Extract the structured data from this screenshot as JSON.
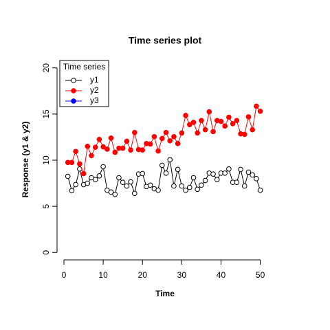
{
  "chart_data": {
    "type": "line",
    "title": "Time series plot",
    "x_label": "Time",
    "y_label": "Response (y1 & y2)",
    "x": [
      1,
      2,
      3,
      4,
      5,
      6,
      7,
      8,
      9,
      10,
      11,
      12,
      13,
      14,
      15,
      16,
      17,
      18,
      19,
      20,
      21,
      22,
      23,
      24,
      25,
      26,
      27,
      28,
      29,
      30,
      31,
      32,
      33,
      34,
      35,
      36,
      37,
      38,
      39,
      40,
      41,
      42,
      43,
      44,
      45,
      46,
      47,
      48,
      49,
      50
    ],
    "series": [
      {
        "name": "y1",
        "color": "#000000",
        "marker": "open",
        "values": [
          8.25,
          6.7,
          7.35,
          9.05,
          7.35,
          7.5,
          8.1,
          7.9,
          8.3,
          9.3,
          6.75,
          6.55,
          6.3,
          8.1,
          7.6,
          7.2,
          7.65,
          6.4,
          8.5,
          8.55,
          7.15,
          7.3,
          6.9,
          6.75,
          9.45,
          8.6,
          10.05,
          7.2,
          9.0,
          7.2,
          6.75,
          7.05,
          8.1,
          6.85,
          7.3,
          7.8,
          8.6,
          8.5,
          7.9,
          8.6,
          8.6,
          9.05,
          7.6,
          7.6,
          9.0,
          7.2,
          8.7,
          8.4,
          8.0,
          6.75
        ]
      },
      {
        "name": "y2",
        "color": "#ff0000",
        "marker": "filled",
        "values": [
          9.75,
          9.75,
          10.95,
          9.6,
          8.55,
          11.5,
          10.5,
          11.4,
          12.25,
          11.45,
          11.2,
          12.4,
          10.85,
          11.3,
          11.3,
          12.05,
          11.1,
          13.0,
          11.15,
          11.1,
          11.8,
          11.75,
          12.55,
          11.0,
          12.35,
          13.0,
          12.1,
          12.55,
          11.8,
          12.95,
          14.85,
          13.85,
          14.1,
          12.95,
          14.3,
          13.3,
          15.25,
          13.1,
          14.3,
          14.2,
          13.7,
          14.65,
          13.95,
          14.3,
          12.85,
          12.8,
          14.7,
          13.3,
          15.85,
          15.3
        ]
      },
      {
        "name": "y3",
        "color": "#0000ff",
        "marker": "filled",
        "values": [
          null,
          null,
          null,
          null,
          null,
          null,
          null,
          null,
          null,
          null,
          null,
          null,
          null,
          null,
          null,
          null,
          null,
          null,
          null,
          null,
          null,
          null,
          null,
          null,
          null,
          null,
          null,
          null,
          null,
          null,
          null,
          null,
          null,
          null,
          null,
          null,
          null,
          null,
          null,
          null,
          null,
          null,
          null,
          null,
          null,
          null,
          null,
          null,
          null,
          null
        ]
      }
    ],
    "legend_title": "Time series",
    "legend_position": "top-left",
    "xlim": [
      -1.75,
      52
    ],
    "xticks": [
      0,
      10,
      20,
      30,
      40,
      50
    ],
    "ylim": [
      -0.8,
      20.8
    ],
    "yticks": [
      0,
      5,
      10,
      15,
      20
    ]
  }
}
